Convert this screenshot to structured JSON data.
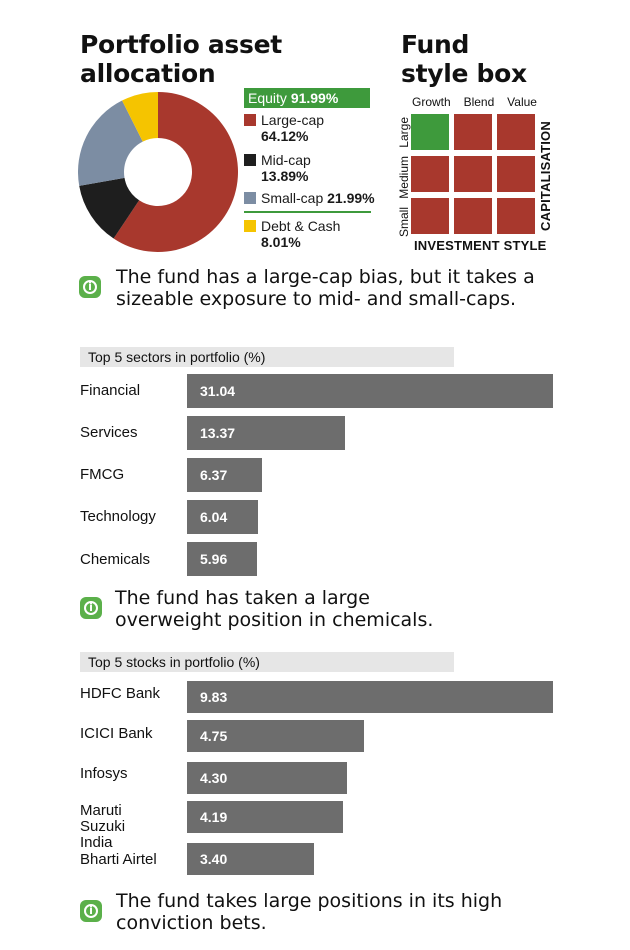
{
  "allocation": {
    "title_line1": "Portfolio asset",
    "title_line2": "allocation",
    "equity_label": "Equity",
    "equity_value": "91.99%",
    "items": [
      {
        "label": "Large-cap",
        "value": "64.12%",
        "pct": 64.12,
        "color": "#a8382d"
      },
      {
        "label": "Mid-cap",
        "value": "13.89%",
        "pct": 13.89,
        "color": "#1e1e1e"
      },
      {
        "label": "Small-cap",
        "value": "21.99%",
        "pct": 21.99,
        "color": "#7c8da3"
      },
      {
        "label": "Debt & Cash",
        "value": "8.01%",
        "pct": 8.01,
        "color": "#f5c400"
      }
    ],
    "note": "The fund has a large-cap bias, but it takes a sizeable exposure to mid- and small-caps."
  },
  "style_box": {
    "title_line1": "Fund",
    "title_line2": "style box",
    "columns": [
      "Growth",
      "Blend",
      "Value"
    ],
    "rows": [
      "Large",
      "Medium",
      "Small"
    ],
    "x_title": "INVESTMENT STYLE",
    "y_title": "CAPITALISATION",
    "highlight": {
      "row": "Large",
      "column": "Growth"
    },
    "colors": {
      "highlight": "#3e9a3c",
      "cell": "#a8382d"
    }
  },
  "chart_data": [
    {
      "type": "bar",
      "orientation": "horizontal",
      "title": "Top 5 sectors in portfolio (%)",
      "categories": [
        "Financial",
        "Services",
        "FMCG",
        "Technology",
        "Chemicals"
      ],
      "values": [
        31.04,
        13.37,
        6.37,
        6.04,
        5.96
      ],
      "value_labels": [
        "31.04",
        "13.37",
        "6.37",
        "6.04",
        "5.96"
      ],
      "xlim": [
        0,
        31.04
      ]
    },
    {
      "type": "bar",
      "orientation": "horizontal",
      "title": "Top 5 stocks in portfolio (%)",
      "categories": [
        "HDFC Bank",
        "ICICI Bank",
        "Infosys",
        "Maruti Suzuki India",
        "Bharti Airtel"
      ],
      "values": [
        9.83,
        4.75,
        4.3,
        4.19,
        3.4
      ],
      "value_labels": [
        "9.83",
        "4.75",
        "4.30",
        "4.19",
        "3.40"
      ],
      "xlim": [
        0,
        9.83
      ]
    }
  ],
  "notes": {
    "sectors": "The fund has taken a large overweight position in chemicals.",
    "stocks": "The fund takes large positions in its high conviction bets."
  },
  "icon_names": {
    "note": "info-icon"
  }
}
